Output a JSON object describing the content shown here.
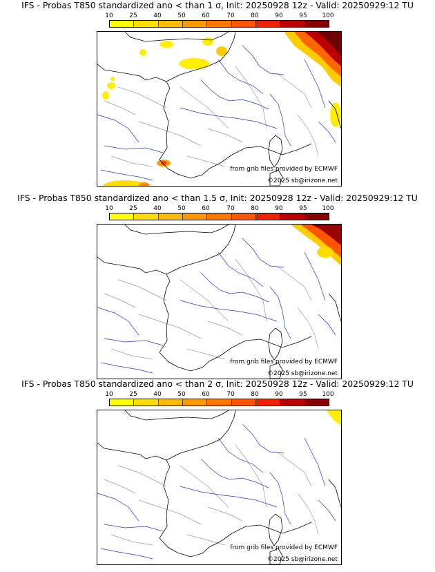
{
  "panels": [
    {
      "title": "IFS - Probas T850  standardized ano < than 1 σ, Init: 20250928 12z - Valid: 20250929:12 TU",
      "credit_source": "from grib files provided by ECMWF",
      "credit_copyright": "©2025 sb@irizone.net"
    },
    {
      "title": "IFS - Probas T850  standardized ano < than 1.5 σ, Init: 20250928 12z - Valid: 20250929:12 TU",
      "credit_source": "from grib files provided by ECMWF",
      "credit_copyright": "©2025 sb@irizone.net"
    },
    {
      "title": "IFS - Probas T850  standardized ano < than 2 σ, Init: 20250928 12z - Valid: 20250929:12 TU",
      "credit_source": "from grib files provided by ECMWF",
      "credit_copyright": "©2025 sb@irizone.net"
    }
  ],
  "colorbar": {
    "ticks": [
      "10",
      "25",
      "40",
      "50",
      "60",
      "70",
      "80",
      "90",
      "95",
      "100"
    ],
    "colors": [
      "#ffff00",
      "#ffdd00",
      "#ffbb00",
      "#ff9900",
      "#ff7700",
      "#ff5500",
      "#ee2200",
      "#bb0000",
      "#880000"
    ]
  }
}
